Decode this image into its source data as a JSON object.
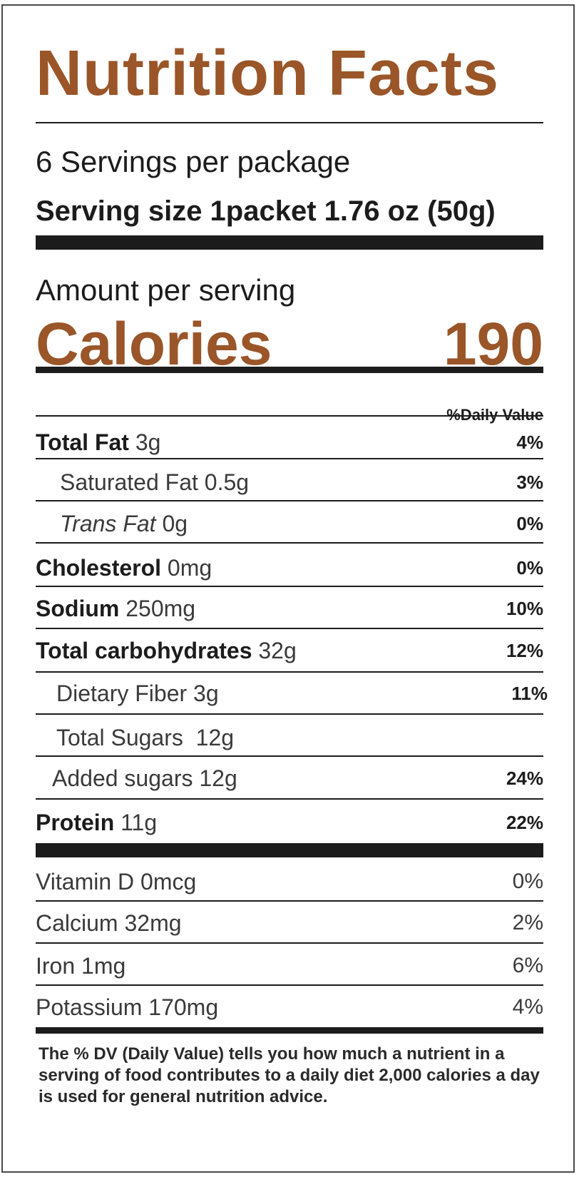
{
  "label": {
    "title": "Nutrition Facts",
    "servings": "6 Servings per package",
    "serving_size": "Serving size 1packet 1.76 oz (50g)",
    "amount_per_serving": "Amount per serving",
    "calories_label": "Calories",
    "calories_value": "190",
    "daily_value_header": "%Daily Value",
    "accent_color": "#9a5528",
    "nutrients": [
      {
        "name": "Total Fat",
        "amount": "3g",
        "dv": "4%"
      },
      {
        "name": "Saturated Fat",
        "amount": "0.5g",
        "dv": "3%"
      },
      {
        "name": "Trans Fat",
        "amount": "0g",
        "dv": "0%"
      },
      {
        "name": "Cholesterol",
        "amount": "0mg",
        "dv": "0%"
      },
      {
        "name": "Sodium",
        "amount": "250mg",
        "dv": "10%"
      },
      {
        "name": "Total carbohydrates",
        "amount": "32g",
        "dv": "12%"
      },
      {
        "name": "Dietary Fiber",
        "amount": "3g",
        "dv": "11%"
      },
      {
        "name": "Total Sugars",
        "amount": "12g",
        "dv": ""
      },
      {
        "name": "Added sugars",
        "amount": "12g",
        "dv": "24%"
      },
      {
        "name": "Protein",
        "amount": "11g",
        "dv": "22%"
      }
    ],
    "vitamins": [
      {
        "name": "Vitamin D",
        "amount": "0mcg",
        "dv": "0%"
      },
      {
        "name": "Calcium",
        "amount": "32mg",
        "dv": "2%"
      },
      {
        "name": "Iron",
        "amount": "1mg",
        "dv": "6%"
      },
      {
        "name": "Potassium",
        "amount": "170mg",
        "dv": "4%"
      }
    ],
    "footnote": "The % DV (Daily Value) tells you how much a nutrient in a serving of food contributes  to a  daily diet 2,000 calories a day is used for general   nutrition advice."
  }
}
